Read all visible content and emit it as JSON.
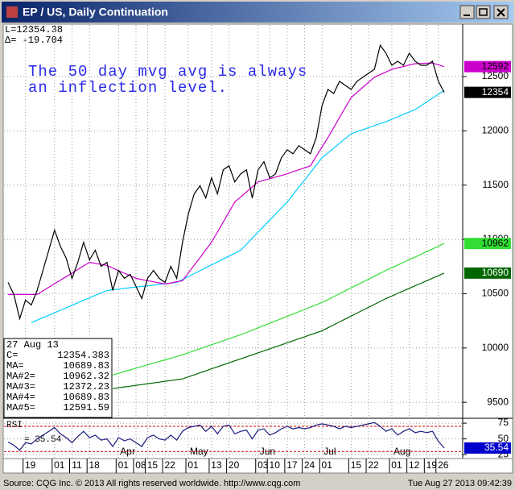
{
  "window_title": "EP / US, Daily Continuation",
  "status_left": "Source: CQG Inc. © 2013 All rights reserved worldwide.  http://www.cqg.com",
  "status_right": "Tue Aug 27 2013 09:42:39",
  "chart_data": [
    {
      "type": "line",
      "header": [
        "L=12354.38",
        "Δ=  -19.704"
      ],
      "annotation": [
        "The 50 day mvg avg is always",
        "an inflection level."
      ],
      "info_box": {
        "date": "27 Aug 13",
        "rows": [
          [
            "C=",
            "12354.383"
          ],
          [
            "MA=",
            "10689.83"
          ],
          [
            "MA#2=",
            "10962.32"
          ],
          [
            "MA#3=",
            "12372.23"
          ],
          [
            "MA#4=",
            "10689.83"
          ],
          [
            "MA#5=",
            "12591.59"
          ]
        ]
      },
      "categories": [
        null,
        null,
        null,
        "19",
        null,
        null,
        null,
        null,
        "01",
        null,
        null,
        "11",
        null,
        null,
        "18",
        null,
        null,
        null,
        null,
        "01",
        null,
        null,
        "08",
        null,
        "15",
        null,
        null,
        "22",
        null,
        null,
        null,
        "01",
        null,
        null,
        null,
        "13",
        null,
        null,
        "20",
        null,
        null,
        null,
        null,
        "03",
        null,
        "10",
        null,
        null,
        "17",
        null,
        null,
        "24",
        null,
        null,
        "01",
        null,
        null,
        null,
        null,
        "15",
        null,
        null,
        "22",
        null,
        null,
        null,
        "01",
        null,
        null,
        "12",
        null,
        null,
        "19",
        null,
        "26",
        null
      ],
      "months": [
        null,
        null,
        null,
        null,
        null,
        null,
        null,
        null,
        null,
        null,
        null,
        null,
        null,
        null,
        null,
        null,
        null,
        null,
        null,
        "Apr",
        null,
        null,
        null,
        null,
        null,
        null,
        null,
        null,
        null,
        null,
        null,
        "May",
        null,
        null,
        null,
        null,
        null,
        null,
        null,
        null,
        null,
        null,
        null,
        "Jun",
        null,
        null,
        null,
        null,
        null,
        null,
        null,
        null,
        null,
        null,
        "Jul",
        null,
        null,
        null,
        null,
        null,
        null,
        null,
        null,
        null,
        null,
        null,
        "Aug",
        null,
        null,
        null,
        null,
        null,
        null,
        null,
        null,
        null
      ],
      "ylim": [
        9360,
        12975
      ],
      "yticks": [
        9500,
        10000,
        10500,
        11000,
        11500,
        12000,
        12500
      ],
      "grid": true,
      "series": [
        {
          "color": "#33dd33",
          "end_label": "10962",
          "label_color": "#000000",
          "values": [
            null,
            null,
            null,
            null,
            null,
            null,
            null,
            null,
            null,
            null,
            null,
            null,
            null,
            null,
            null,
            null,
            null,
            null,
            9752,
            9767,
            9783,
            9798,
            9814,
            9829,
            9845,
            9860,
            9875,
            9891,
            9906,
            9922,
            9937,
            9956,
            9974,
            9993,
            10011,
            10030,
            10048,
            10067,
            10085,
            10104,
            10122,
            10143,
            10164,
            10186,
            10207,
            10228,
            10249,
            10270,
            10292,
            10313,
            10334,
            10355,
            10376,
            10398,
            10419,
            10446,
            10473,
            10500,
            10527,
            10554,
            10580,
            10607,
            10634,
            10661,
            10688,
            10715,
            10740,
            10764,
            10789,
            10814,
            10838,
            10863,
            10888,
            10913,
            10937,
            10962.32
          ]
        },
        {
          "color": "#006600",
          "end_label": "10690",
          "label_color": "#ffffff",
          "values": [
            null,
            null,
            null,
            null,
            null,
            null,
            null,
            null,
            null,
            null,
            null,
            null,
            null,
            null,
            null,
            null,
            null,
            null,
            9626,
            9633,
            9641,
            9648,
            9656,
            9663,
            9671,
            9678,
            9685,
            9693,
            9700,
            9708,
            9715,
            9734,
            9752,
            9771,
            9789,
            9808,
            9826,
            9845,
            9863,
            9882,
            9900,
            9918,
            9937,
            9955,
            9974,
            9992,
            10011,
            10029,
            10048,
            10066,
            10085,
            10103,
            10122,
            10140,
            10159,
            10186,
            10213,
            10240,
            10267,
            10294,
            10321,
            10348,
            10375,
            10402,
            10429,
            10456,
            10479,
            10503,
            10526,
            10549,
            10573,
            10596,
            10619,
            10643,
            10666,
            10689.83
          ]
        },
        {
          "color": "#00ccff",
          "values": [
            null,
            null,
            null,
            null,
            10233,
            10256,
            10279,
            10301,
            10324,
            10347,
            10370,
            10393,
            10416,
            10439,
            10461,
            10484,
            10507,
            10530,
            10536,
            10542,
            10549,
            10555,
            10561,
            10567,
            10573,
            10579,
            10586,
            10592,
            10598,
            10604,
            10631,
            10658,
            10685,
            10712,
            10739,
            10766,
            10793,
            10820,
            10846,
            10873,
            10900,
            10956,
            11011,
            11067,
            11122,
            11178,
            11233,
            11289,
            11344,
            11412,
            11480,
            11548,
            11616,
            11684,
            11752,
            11796,
            11841,
            11885,
            11930,
            11974,
            11993,
            12011,
            12030,
            12048,
            12067,
            12085,
            12107,
            12129,
            12152,
            12174,
            12196,
            12231,
            12266,
            12302,
            12337,
            12372.23
          ]
        },
        {
          "color": "#cc00cc",
          "end_label": "12592",
          "label_color": "#000000",
          "values": [
            10493,
            10493,
            10493,
            10493,
            10493,
            10493,
            10526,
            10559,
            10592,
            10625,
            10657,
            10690,
            10723,
            10756,
            10789,
            10779,
            10770,
            10760,
            10736,
            10712,
            10689,
            10665,
            10641,
            10631,
            10620,
            10610,
            10599,
            10589,
            10599,
            10610,
            10620,
            10691,
            10762,
            10832,
            10903,
            10974,
            11067,
            11159,
            11252,
            11344,
            11391,
            11437,
            11484,
            11530,
            11545,
            11559,
            11574,
            11589,
            11604,
            11623,
            11641,
            11660,
            11678,
            11764,
            11851,
            11937,
            12030,
            12122,
            12215,
            12307,
            12354,
            12400,
            12447,
            12493,
            12518,
            12542,
            12567,
            12580,
            12593,
            12606,
            12619,
            12621,
            12623,
            12625,
            12608,
            12591.59
          ]
        },
        {
          "color": "#000000",
          "end_label": "12354",
          "label_color": "#ffffff",
          "values": [
            10604,
            10493,
            10270,
            10441,
            10396,
            10530,
            10715,
            10900,
            11085,
            10937,
            10826,
            10641,
            10789,
            10974,
            10811,
            10900,
            10752,
            10789,
            10530,
            10715,
            10641,
            10678,
            10567,
            10456,
            10641,
            10715,
            10641,
            10604,
            10752,
            10641,
            10974,
            11233,
            11419,
            11493,
            11381,
            11567,
            11419,
            11641,
            11678,
            11530,
            11604,
            11641,
            11381,
            11641,
            11715,
            11567,
            11604,
            11752,
            11826,
            11789,
            11863,
            11826,
            11789,
            11937,
            12233,
            12381,
            12344,
            12456,
            12419,
            12381,
            12456,
            12493,
            12530,
            12567,
            12789,
            12715,
            12604,
            12641,
            12604,
            12715,
            12641,
            12604,
            12604,
            12641,
            12456,
            12354.383
          ]
        }
      ]
    },
    {
      "type": "line",
      "label": "RSI",
      "readout": "=  35.54",
      "ylim": [
        20,
        81.5
      ],
      "yticks": [
        25,
        50,
        75
      ],
      "levels": [
        70,
        30
      ],
      "series": [
        {
          "color": "#1a1a80",
          "end_label": "35.54",
          "label_color": "#ffffff",
          "label_bg": "#0000cc",
          "values": [
            45,
            40,
            32,
            44,
            42,
            50,
            56,
            62,
            68,
            58,
            52,
            44,
            54,
            62,
            52,
            56,
            48,
            50,
            38,
            52,
            47,
            50,
            44,
            38,
            52,
            56,
            50,
            48,
            56,
            48,
            62,
            68,
            70,
            72,
            62,
            70,
            58,
            70,
            72,
            58,
            62,
            64,
            50,
            64,
            66,
            56,
            60,
            66,
            70,
            66,
            68,
            66,
            68,
            72,
            74,
            72,
            70,
            66,
            70,
            68,
            70,
            72,
            74,
            76,
            70,
            62,
            66,
            56,
            62,
            66,
            60,
            62,
            60,
            62,
            46,
            35.54
          ]
        }
      ]
    }
  ]
}
